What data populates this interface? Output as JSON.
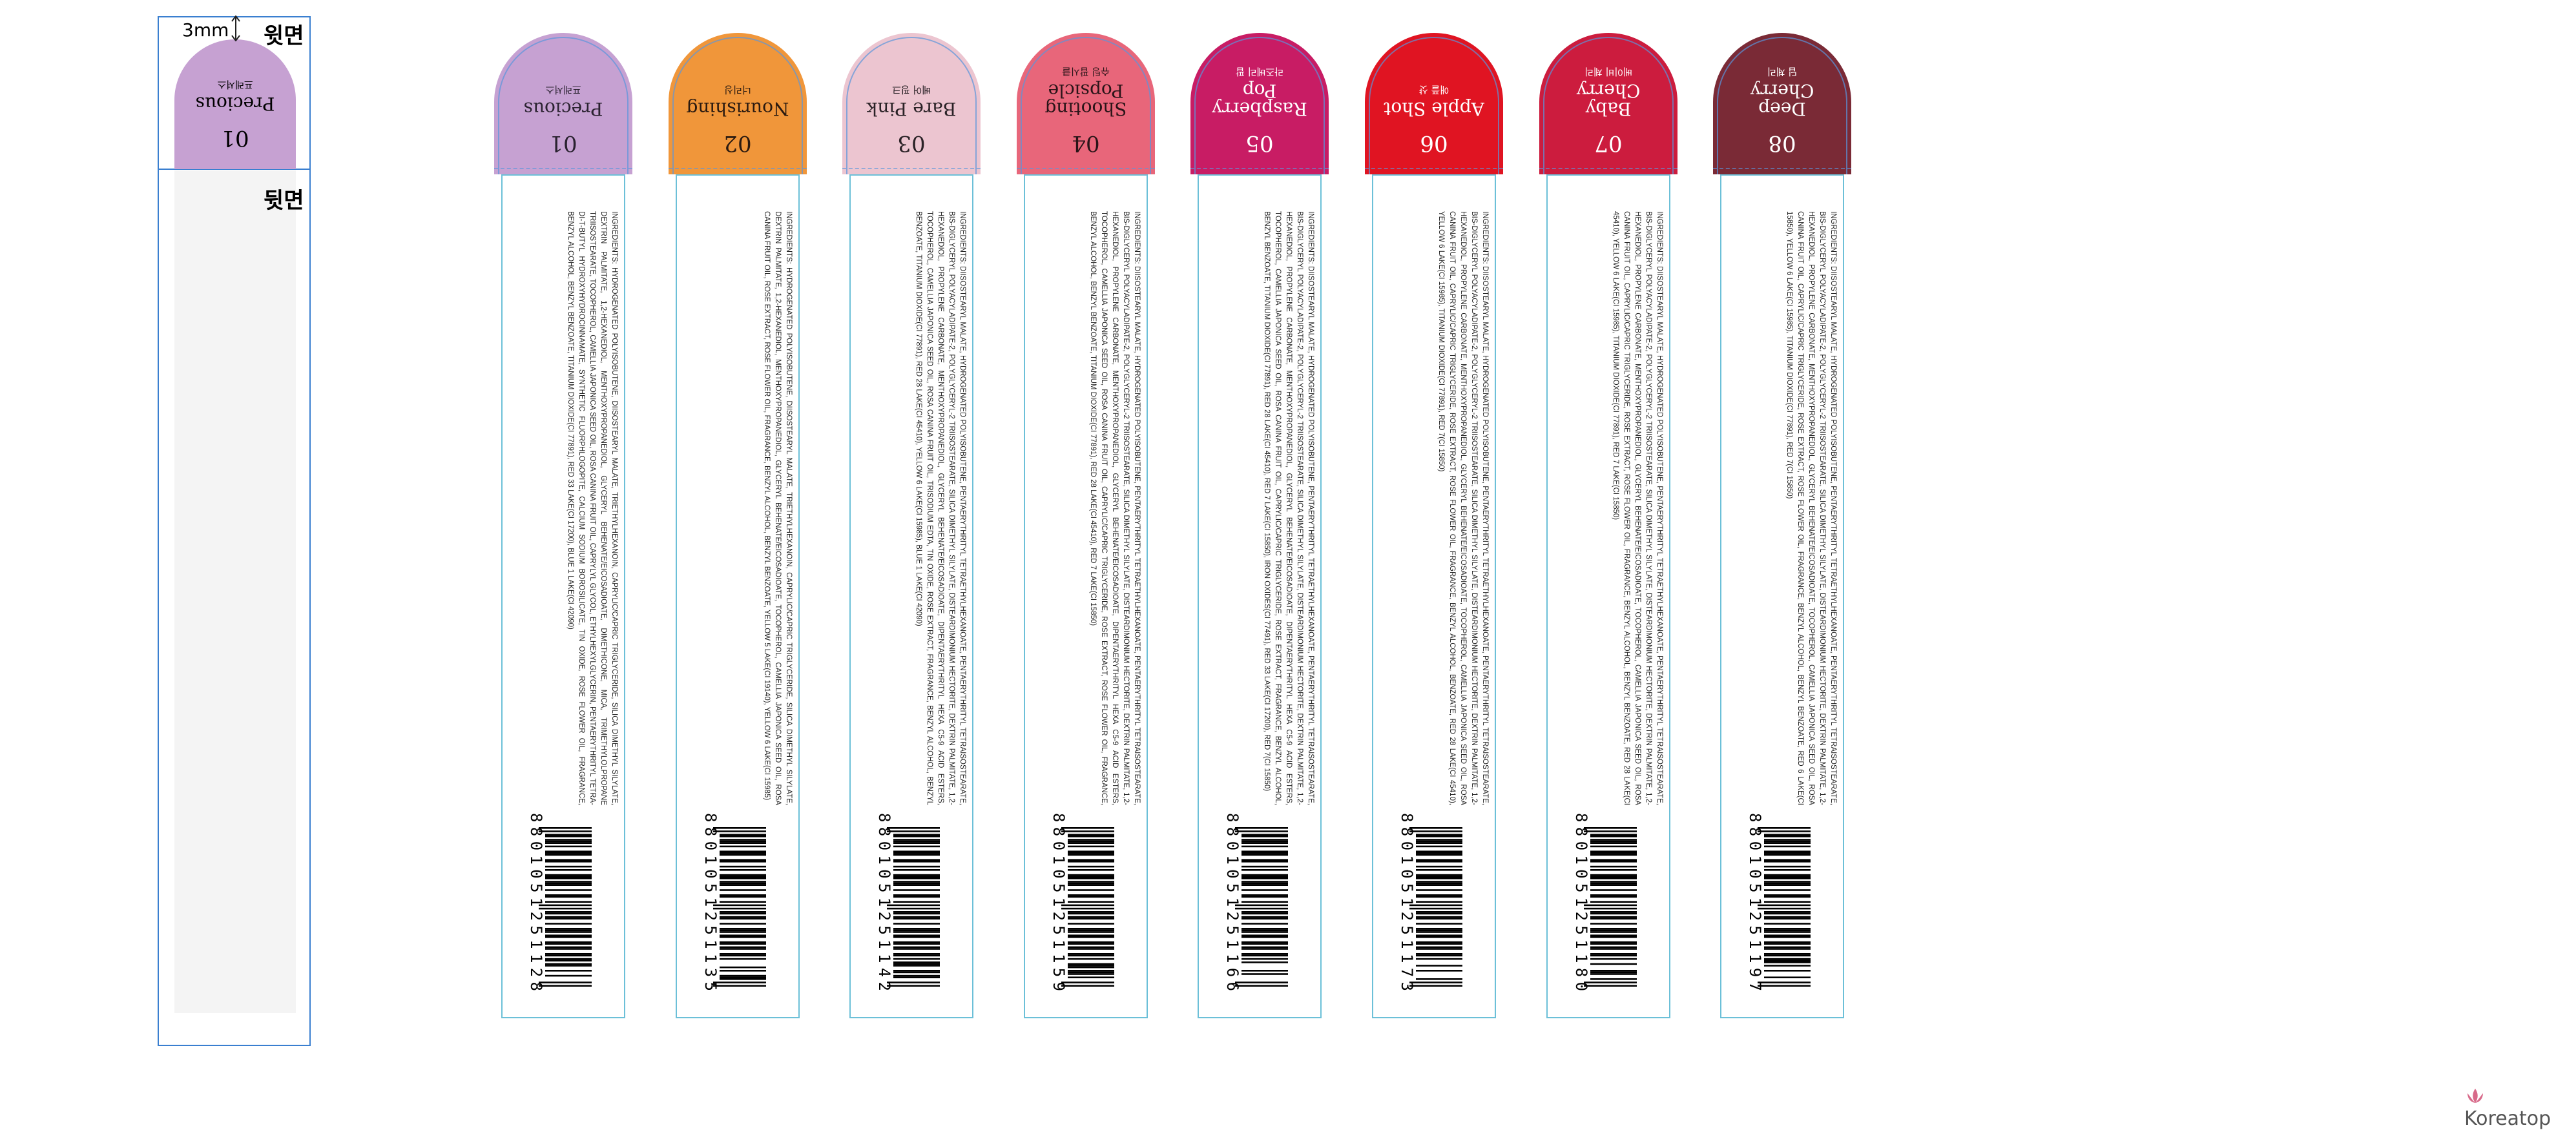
{
  "template": {
    "dimension": "3mm",
    "front_label": "윗면",
    "back_label": "뒷면",
    "arch": {
      "number": "01",
      "name": "Precious",
      "name_ko": "프레셔스",
      "color": "#c6a1d2"
    }
  },
  "products": [
    {
      "number": "01",
      "name": "Precious",
      "name_ko": "프레셔스",
      "color": "#c6a1d2",
      "text_color": "#2a2230",
      "ingredients": "INGREDIENTS: HYDROGENATED POLYISOBUTENE, DIISOSTEARYL MALATE, TRIETHYLHEXANOIN, CAPRYLIC/CAPRIC TRIGLYCERIDE, SILICA DIMETHYL SILYLATE, DEXTRIN PALMITATE, 1,2-HEXANEDIOL, MENTHOXYPROPANEDIOL, GLYCERYL BEHENATE/EICOSADIOATE, DIMETHICONE, MICA, TRIMETHYLOLPROPANE TRIISOSTEARATE, TOCOPHEROL, CAMELLIA JAPONICA SEED OIL, ROSA CANINA FRUIT OIL, CAPRYLYL GLYCOL, ETHYLHEXYLGLYCERIN, PENTAERYTHRITYL TETRA-DI-T-BUTYL HYDROXYHYDROCINNAMATE, SYNTHETIC FLUORPHLOGOPITE, CALCIUM SODIUM BOROSILICATE, TIN OXIDE, ROSE FLOWER OIL, FRAGRANCE, BENZYL ALCOHOL, BENZYL BENZOATE, TITANIUM DIOXIDE(CI 77891), RED 33 LAKE(CI 17200), BLUE 1 LAKE(CI 42090)",
      "barcode": "8801051251128"
    },
    {
      "number": "02",
      "name": "Nourishing",
      "name_ko": "너리싱",
      "color": "#f0963a",
      "text_color": "#2a1a10",
      "ingredients": "INGREDIENTS: HYDROGENATED POLYISOBUTENE, DIISOSTEARYL MALATE, TRIETHYLHEXANOIN, CAPRYLIC/CAPRIC TRIGLYCERIDE, SILICA DIMETHYL SILYLATE, DEXTRIN PALMITATE, 1,2-HEXANEDIOL, MENTHOXYPROPANEDIOL, GLYCERYL BEHENATE/EICOSADIOATE, TOCOPHEROL, CAMELLIA JAPONICA SEED OIL, ROSA CANINA FRUIT OIL, ROSE EXTRACT, ROSE FLOWER OIL, FRAGRANCE, BENZYL ALCOHOL, BENZYL BENZOATE, YELLOW 5 LAKE(CI 19140), YELLOW 6 LAKE(CI 15985)",
      "barcode": "8801051251135"
    },
    {
      "number": "03",
      "name": "Bare Pink",
      "name_ko": "베어 핑크",
      "color": "#ecc5d0",
      "text_color": "#2a2226",
      "ingredients": "INGREDIENTS: DIISOSTEARYL MALATE, HYDROGENATED POLYISOBUTENE, PENTAERYTHRITYL TETRAETHYLHEXANOATE, PENTAERYTHRITYL TETRAISOSTEARATE, BIS-DIGLYCERYL POLYACYLADIPATE-2, POLYGLYCERYL-2 TRIISOSTEARATE, SILICA DIMETHYL SILYLATE, DISTEARDIMONIUM HECTORITE, DEXTRIN PALMITATE, 1,2-HEXANEDIOL, PROPYLENE CARBONATE, MENTHOXYPROPANEDIOL, GLYCERYL BEHENATE/EICOSADIOATE, DIPENTAERYTHRITYL HEXA C5-9 ACID ESTERS, TOCOPHEROL, CAMELLIA JAPONICA SEED OIL, ROSA CANINA FRUIT OIL, TRISODIUM EDTA, TIN OXIDE, ROSE EXTRACT, FRAGRANCE, BENZYL ALCOHOL, BENZYL BENZOATE, TITANIUM DIOXIDE(CI 77891), RED 28 LAKE(CI 45410), YELLOW 6 LAKE(CI 15985), BLUE 1 LAKE(CI 42090)",
      "barcode": "8801051251142"
    },
    {
      "number": "04",
      "name": "Shooting Popsicle",
      "name_ko": "슈팅 팝시클",
      "color": "#e8667a",
      "text_color": "#2a1418",
      "ingredients": "INGREDIENTS: DIISOSTEARYL MALATE, HYDROGENATED POLYISOBUTENE, PENTAERYTHRITYL TETRAETHYLHEXANOATE, PENTAERYTHRITYL TETRAISOSTEARATE, BIS-DIGLYCERYL POLYACYLADIPATE-2, POLYGLYCERYL-2 TRIISOSTEARATE, SILICA DIMETHYL SILYLATE, DISTEARDIMONIUM HECTORITE, DEXTRIN PALMITATE, 1,2-HEXANEDIOL, PROPYLENE CARBONATE, MENTHOXYPROPANEDIOL, GLYCERYL BEHENATE/EICOSADIOATE, DIPENTAERYTHRITYL HEXA C5-9 ACID ESTERS, TOCOPHEROL, CAMELLIA JAPONICA SEED OIL, ROSA CANINA FRUIT OIL, CAPRYLIC/CAPRIC TRIGLYCERIDE, ROSE EXTRACT, ROSE FLOWER OIL, FRAGRANCE, BENZYL ALCOHOL, BENZYL BENZOATE, TITANIUM DIOXIDE(CI 77891), RED 28 LAKE(CI 45410), RED 7 LAKE(CI 15850)",
      "barcode": "8801051251159"
    },
    {
      "number": "05",
      "name": "Raspberry Pop",
      "name_ko": "라즈베리 팝",
      "color": "#c81c64",
      "text_color": "#ffffff",
      "ingredients": "INGREDIENTS: DIISOSTEARYL MALATE, HYDROGENATED POLYISOBUTENE, PENTAERYTHRITYL TETRAETHYLHEXANOATE, PENTAERYTHRITYL TETRAISOSTEARATE, BIS-DIGLYCERYL POLYACYLADIPATE-2, POLYGLYCERYL-2 TRIISOSTEARATE, SILICA DIMETHYL SILYLATE, DISTEARDIMONIUM HECTORITE, DEXTRIN PALMITATE, 1,2-HEXANEDIOL, PROPYLENE CARBONATE, MENTHOXYPROPANEDIOL, GLYCERYL BEHENATE/EICOSADIOATE, DIPENTAERYTHRITYL HEXA C5-9 ACID ESTERS, TOCOPHEROL, CAMELLIA JAPONICA SEED OIL, ROSA CANINA FRUIT OIL, CAPRYLIC/CAPRIC TRIGLYCERIDE, ROSE EXTRACT, FRAGRANCE, BENZYL ALCOHOL, BENZYL BENZOATE, TITANIUM DIOXIDE(CI 77891), RED 28 LAKE(CI 45410), RED 7 LAKE(CI 15850), IRON OXIDES(CI 77491), RED 33 LAKE(CI 17200), RED 7(CI 15850)",
      "barcode": "8801051251166"
    },
    {
      "number": "06",
      "name": "Apple Shot",
      "name_ko": "애플 샷",
      "color": "#e01422",
      "text_color": "#ffffff",
      "ingredients": "INGREDIENTS: DIISOSTEARYL MALATE, HYDROGENATED POLYISOBUTENE, PENTAERYTHRITYL TETRAETHYLHEXANOATE, PENTAERYTHRITYL TETRAISOSTEARATE, BIS-DIGLYCERYL POLYACYLADIPATE-2, POLYGLYCERYL-2 TRIISOSTEARATE, SILICA DIMETHYL SILYLATE, DISTEARDIMONIUM HECTORITE, DEXTRIN PALMITATE, 1,2-HEXANEDIOL, PROPYLENE CARBONATE, MENTHOXYPROPANEDIOL, GLYCERYL BEHENATE/EICOSADIOATE, TOCOPHEROL, CAMELLIA JAPONICA SEED OIL, ROSA CANINA FRUIT OIL, CAPRYLIC/CAPRIC TRIGLYCERIDE, ROSE EXTRACT, ROSE FLOWER OIL, FRAGRANCE, BENZYL ALCOHOL, BENZOATE, RED 28 LAKE(CI 45410), YELLOW 6 LAKE(CI 15985), TITANIUM DIOXIDE(CI 77891), RED 7(CI 15850)",
      "barcode": "8801051251173"
    },
    {
      "number": "07",
      "name": "Baby Cherry",
      "name_ko": "베이비 체리",
      "color": "#cc1c3e",
      "text_color": "#ffffff",
      "ingredients": "INGREDIENTS: DIISOSTEARYL MALATE, HYDROGENATED POLYISOBUTENE, PENTAERYTHRITYL TETRAETHYLHEXANOATE, PENTAERYTHRITYL TETRAISOSTEARATE, BIS-DIGLYCERYL POLYACYLADIPATE-2, POLYGLYCERYL-2 TRIISOSTEARATE, SILICA DIMETHYL SILYLATE, DISTEARDIMONIUM HECTORITE, DEXTRIN PALMITATE, 1,2-HEXANEDIOL, PROPYLENE CARBONATE, MENTHOXYPROPANEDIOL, GLYCERYL BEHENATE/EICOSADIOATE, TOCOPHEROL, CAMELLIA JAPONICA SEED OIL, ROSA CANINA FRUIT OIL, CAPRYLIC/CAPRIC TRIGLYCERIDE, ROSE EXTRACT, ROSE FLOWER OIL, FRAGRANCE, BENZYL ALCOHOL, BENZYL BENZOATE, RED 28 LAKE(CI 45410), YELLOW 6 LAKE(CI 15985), TITANIUM DIOXIDE(CI 77891), RED 7 LAKE(CI 15850)",
      "barcode": "8801051251180"
    },
    {
      "number": "08",
      "name": "Deep Cherry",
      "name_ko": "딥 체리",
      "color": "#7a2a36",
      "text_color": "#ffffff",
      "ingredients": "INGREDIENTS: DIISOSTEARYL MALATE, HYDROGENATED POLYISOBUTENE, PENTAERYTHRITYL TETRAETHYLHEXANOATE, PENTAERYTHRITYL TETRAISOSTEARATE, BIS-DIGLYCERYL POLYACYLADIPATE-2, POLYGLYCERYL-2 TRIISOSTEARATE, SILICA DIMETHYL SILYLATE, DISTEARDIMONIUM HECTORITE, DEXTRIN PALMITATE, 1,2-HEXANEDIOL, PROPYLENE CARBONATE, MENTHOXYPROPANEDIOL, GLYCERYL BEHENATE/EICOSADIOATE, TOCOPHEROL, CAMELLIA JAPONICA SEED OIL, ROSA CANINA FRUIT OIL, CAPRYLIC/CAPRIC TRIGLYCERIDE, ROSE EXTRACT, ROSE FLOWER OIL, FRAGRANCE, BENZYL ALCOHOL, BENZYL BENZOATE, RED 6 LAKE(CI 15850), YELLOW 6 LAKE(CI 15985), TITANIUM DIOXIDE(CI 77891), RED 7(CI 15850)",
      "barcode": "8801051251197"
    }
  ],
  "watermark": "Koreatop"
}
